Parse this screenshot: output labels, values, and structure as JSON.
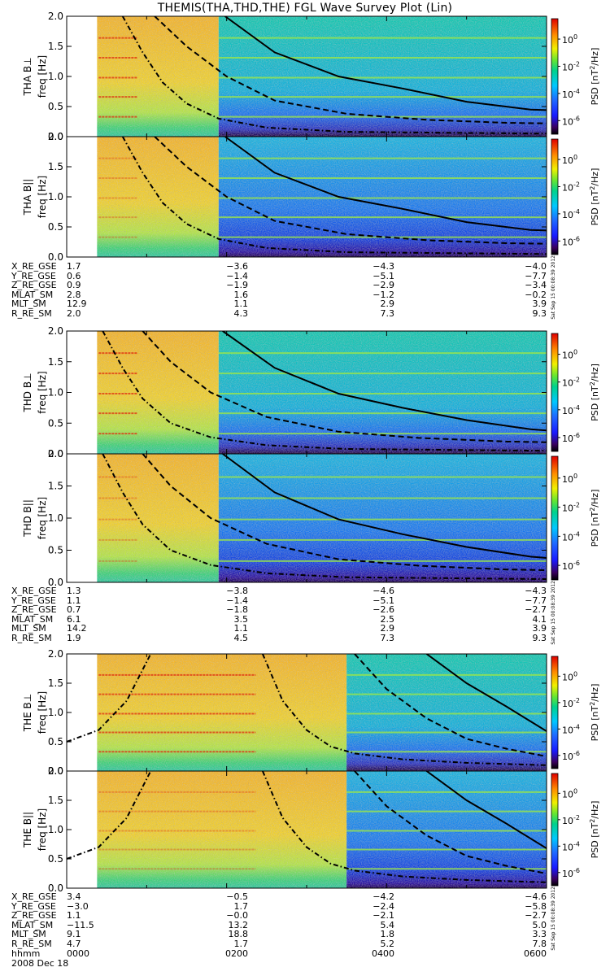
{
  "title": "THEMIS(THA,THD,THE) FGL Wave Survey Plot (Lin)",
  "chart_data": {
    "type": "heatmap",
    "time_ticks": [
      "0000",
      "0200",
      "0400",
      "0600"
    ],
    "time_row_label": "hhmm",
    "date_label": "2008 Dec 18",
    "freq_ticks": [
      "0.0",
      "0.5",
      "1.0",
      "1.5",
      "2.0"
    ],
    "ylim_hz": [
      0,
      2.0
    ],
    "xlim_hours": [
      0,
      6
    ],
    "colorbar": {
      "label": "PSD [nT²/Hz]",
      "label_parts": [
        "PSD [nT",
        "2",
        "/Hz]"
      ],
      "ticks": [
        {
          "exp": "0",
          "val": 0
        },
        {
          "exp": "-2",
          "val": -2
        },
        {
          "exp": "-4",
          "val": -4
        },
        {
          "exp": "-6",
          "val": -6
        }
      ],
      "log_range": [
        -7,
        1.5
      ]
    },
    "stamp": "Sat Sep 15 00:08:39 2012",
    "panels": [
      {
        "probe": "THA",
        "component": "B⊥",
        "freq_label": "freq [Hz]",
        "data_start_hour": 0.38,
        "high_end_hour": 1.9,
        "stamp": false,
        "harmonics": [
          0.33,
          0.66,
          0.98,
          1.31,
          1.64
        ]
      },
      {
        "probe": "THA",
        "component": "B||",
        "freq_label": "freq [Hz]",
        "data_start_hour": 0.38,
        "high_end_hour": 1.9,
        "stamp": true,
        "harmonics": [
          0.33,
          0.66,
          0.98,
          1.31,
          1.64
        ]
      },
      {
        "probe": "THD",
        "component": "B⊥",
        "freq_label": "freq [Hz]",
        "data_start_hour": 0.38,
        "high_end_hour": 1.9,
        "stamp": false,
        "harmonics": [
          0.33,
          0.66,
          0.98,
          1.31,
          1.64
        ]
      },
      {
        "probe": "THD",
        "component": "B||",
        "freq_label": "freq [Hz]",
        "data_start_hour": 0.38,
        "high_end_hour": 1.9,
        "stamp": true,
        "harmonics": [
          0.33,
          0.66,
          0.98,
          1.31,
          1.64
        ]
      },
      {
        "probe": "THE",
        "component": "B⊥",
        "freq_label": "freq [Hz]",
        "data_start_hour": 0.38,
        "high_end_hour": 3.5,
        "stamp": false,
        "harmonics": [
          0.33,
          0.66,
          0.98,
          1.31,
          1.64
        ]
      },
      {
        "probe": "THE",
        "component": "B||",
        "freq_label": "freq [Hz]",
        "data_start_hour": 0.38,
        "high_end_hour": 3.5,
        "stamp": true,
        "harmonics": [
          0.33,
          0.66,
          0.98,
          1.31,
          1.64
        ]
      }
    ],
    "ephemeris": [
      {
        "probe": "THA",
        "rows": [
          {
            "name": "X_RE_GSE",
            "values": [
              "1.7",
              "−3.6",
              "−4.3",
              "−4.0"
            ]
          },
          {
            "name": "Y_RE_GSE",
            "values": [
              "0.6",
              "−1.4",
              "−5.1",
              "−7.7"
            ]
          },
          {
            "name": "Z_RE_GSE",
            "values": [
              "0.9",
              "−1.9",
              "−2.9",
              "−3.4"
            ]
          },
          {
            "name": "MLAT_SM",
            "values": [
              "2.8",
              "1.6",
              "−1.2",
              "−0.2"
            ]
          },
          {
            "name": "MLT_SM",
            "values": [
              "12.9",
              "1.1",
              "2.9",
              "3.9"
            ]
          },
          {
            "name": "R_RE_SM",
            "values": [
              "2.0",
              "4.3",
              "7.3",
              "9.3"
            ]
          }
        ]
      },
      {
        "probe": "THD",
        "rows": [
          {
            "name": "X_RE_GSE",
            "values": [
              "1.3",
              "−3.8",
              "−4.6",
              "−4.3"
            ]
          },
          {
            "name": "Y_RE_GSE",
            "values": [
              "1.1",
              "−1.4",
              "−5.1",
              "−7.7"
            ]
          },
          {
            "name": "Z_RE_GSE",
            "values": [
              "0.7",
              "−1.8",
              "−2.6",
              "−2.7"
            ]
          },
          {
            "name": "MLAT_SM",
            "values": [
              "6.1",
              "3.5",
              "2.5",
              "4.1"
            ]
          },
          {
            "name": "MLT_SM",
            "values": [
              "14.2",
              "1.1",
              "2.9",
              "3.9"
            ]
          },
          {
            "name": "R_RE_SM",
            "values": [
              "1.9",
              "4.5",
              "7.3",
              "9.3"
            ]
          }
        ]
      },
      {
        "probe": "THE",
        "rows": [
          {
            "name": "X_RE_GSE",
            "values": [
              "3.4",
              "−0.5",
              "−4.2",
              "−4.6"
            ]
          },
          {
            "name": "Y_RE_GSE",
            "values": [
              "−3.0",
              "1.7",
              "−2.4",
              "−5.8"
            ]
          },
          {
            "name": "Z_RE_GSE",
            "values": [
              "1.1",
              "−0.0",
              "−2.1",
              "−2.7"
            ]
          },
          {
            "name": "MLAT_SM",
            "values": [
              "−11.5",
              "13.2",
              "5.4",
              "5.0"
            ]
          },
          {
            "name": "MLT_SM",
            "values": [
              "9.1",
              "18.8",
              "1.8",
              "3.3"
            ]
          },
          {
            "name": "R_RE_SM",
            "values": [
              "4.7",
              "1.7",
              "5.2",
              "7.8"
            ]
          }
        ]
      }
    ],
    "gyro_lines": [
      {
        "style": "solid",
        "probe": "THA",
        "points": [
          [
            1.98,
            2.0
          ],
          [
            2.6,
            1.4
          ],
          [
            3.4,
            1.0
          ],
          [
            4.2,
            0.8
          ],
          [
            5.0,
            0.58
          ],
          [
            5.8,
            0.45
          ],
          [
            6.0,
            0.44
          ]
        ]
      },
      {
        "style": "dashed",
        "probe": "THA",
        "points": [
          [
            1.1,
            2.0
          ],
          [
            1.5,
            1.5
          ],
          [
            2.0,
            1.0
          ],
          [
            2.6,
            0.6
          ],
          [
            3.5,
            0.38
          ],
          [
            4.5,
            0.28
          ],
          [
            5.5,
            0.23
          ],
          [
            6.0,
            0.22
          ]
        ]
      },
      {
        "style": "dashdot",
        "probe": "THA",
        "points": [
          [
            0.7,
            2.0
          ],
          [
            0.95,
            1.4
          ],
          [
            1.2,
            0.9
          ],
          [
            1.5,
            0.55
          ],
          [
            1.9,
            0.3
          ],
          [
            2.5,
            0.15
          ],
          [
            3.5,
            0.08
          ],
          [
            6.0,
            0.05
          ]
        ]
      },
      {
        "style": "solid",
        "probe": "THD",
        "points": [
          [
            1.95,
            2.0
          ],
          [
            2.6,
            1.4
          ],
          [
            3.4,
            0.98
          ],
          [
            4.2,
            0.75
          ],
          [
            5.0,
            0.55
          ],
          [
            5.8,
            0.4
          ],
          [
            6.0,
            0.38
          ]
        ]
      },
      {
        "style": "dashed",
        "probe": "THD",
        "points": [
          [
            0.95,
            2.0
          ],
          [
            1.3,
            1.5
          ],
          [
            1.8,
            1.0
          ],
          [
            2.5,
            0.6
          ],
          [
            3.4,
            0.36
          ],
          [
            4.4,
            0.26
          ],
          [
            5.5,
            0.2
          ],
          [
            6.0,
            0.19
          ]
        ]
      },
      {
        "style": "dashdot",
        "probe": "THD",
        "points": [
          [
            0.45,
            2.0
          ],
          [
            0.7,
            1.4
          ],
          [
            0.95,
            0.9
          ],
          [
            1.3,
            0.5
          ],
          [
            1.8,
            0.27
          ],
          [
            2.5,
            0.14
          ],
          [
            3.5,
            0.08
          ],
          [
            6.0,
            0.05
          ]
        ]
      },
      {
        "style": "solid",
        "probe": "THE",
        "points": [
          [
            4.5,
            2.0
          ],
          [
            5.0,
            1.5
          ],
          [
            5.5,
            1.1
          ],
          [
            6.0,
            0.68
          ]
        ]
      },
      {
        "style": "dashed",
        "probe": "THE",
        "points": [
          [
            3.6,
            2.0
          ],
          [
            4.0,
            1.4
          ],
          [
            4.5,
            0.9
          ],
          [
            5.0,
            0.55
          ],
          [
            5.5,
            0.38
          ],
          [
            6.0,
            0.25
          ]
        ]
      },
      {
        "style": "dashdot",
        "probe": "THE",
        "points": [
          [
            0.0,
            0.5
          ],
          [
            0.4,
            0.7
          ],
          [
            0.75,
            1.2
          ],
          [
            1.05,
            2.0
          ]
        ]
      },
      {
        "style": "dashdot",
        "probe": "THE",
        "points": [
          [
            2.45,
            2.0
          ],
          [
            2.7,
            1.2
          ],
          [
            3.0,
            0.7
          ],
          [
            3.3,
            0.42
          ],
          [
            3.6,
            0.3
          ],
          [
            4.2,
            0.2
          ],
          [
            5.0,
            0.14
          ],
          [
            6.0,
            0.1
          ]
        ]
      }
    ]
  }
}
